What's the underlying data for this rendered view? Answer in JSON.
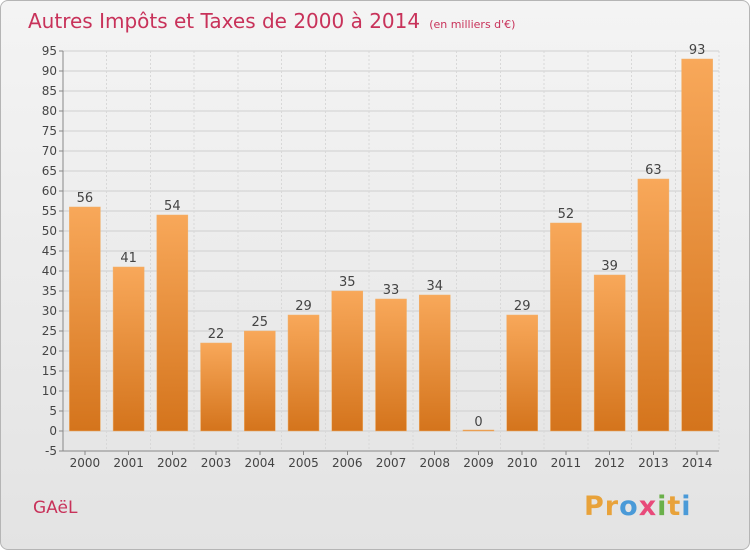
{
  "title": "Autres Impôts et Taxes de 2000 à 2014",
  "unit": "(en milliers d'€)",
  "commune": "GAëL",
  "logo_text": "Proxiti",
  "colors": {
    "title": "#c8325a",
    "bar_light": "#f8a85a",
    "bar_dark": "#d4741c",
    "logo_letters": [
      "#e8a23a",
      "#e8a23a",
      "#4a9ad8",
      "#e84a7a",
      "#6ab04a",
      "#e8a23a",
      "#4a9ad8"
    ]
  },
  "chart_data": {
    "type": "bar",
    "categories": [
      "2000",
      "2001",
      "2002",
      "2003",
      "2004",
      "2005",
      "2006",
      "2007",
      "2008",
      "2009",
      "2010",
      "2011",
      "2012",
      "2013",
      "2014"
    ],
    "values": [
      56,
      41,
      54,
      22,
      25,
      29,
      35,
      33,
      34,
      0,
      29,
      52,
      39,
      63,
      93
    ],
    "title": "Autres Impôts et Taxes de 2000 à 2014",
    "ylim": [
      -5,
      95
    ],
    "yticks": [
      -5,
      0,
      5,
      10,
      15,
      20,
      25,
      30,
      35,
      40,
      45,
      50,
      55,
      60,
      65,
      70,
      75,
      80,
      85,
      90,
      95
    ],
    "grid": true,
    "data_labels": true,
    "legend": "none"
  }
}
